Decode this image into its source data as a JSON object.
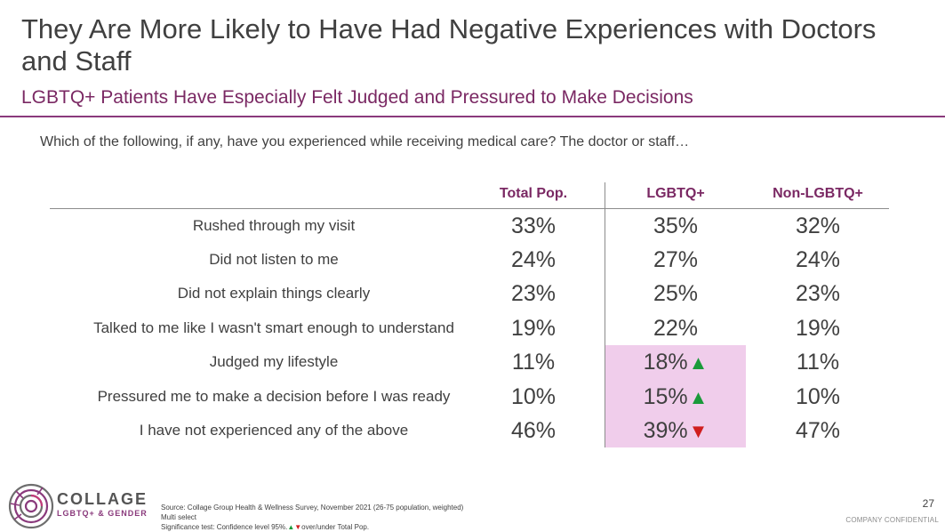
{
  "header": {
    "title": "They Are More Likely to Have Had Negative Experiences with Doctors and Staff",
    "subtitle": "LGBTQ+ Patients Have Especially Felt Judged and Pressured to Make Decisions"
  },
  "question": "Which of the following, if any, have you experienced while receiving medical care? The doctor or staff…",
  "table": {
    "columns": [
      "Total Pop.",
      "LGBTQ+",
      "Non-LGBTQ+"
    ],
    "rows": [
      {
        "label": "Rushed through my visit",
        "total": "33%",
        "lgbtq": "35%",
        "non": "32%",
        "sig": ""
      },
      {
        "label": "Did not listen to me",
        "total": "24%",
        "lgbtq": "27%",
        "non": "24%",
        "sig": ""
      },
      {
        "label": "Did not explain things clearly",
        "total": "23%",
        "lgbtq": "25%",
        "non": "23%",
        "sig": ""
      },
      {
        "label": "Talked to me like I wasn't smart enough to understand",
        "total": "19%",
        "lgbtq": "22%",
        "non": "19%",
        "sig": ""
      },
      {
        "label": "Judged my lifestyle",
        "total": "11%",
        "lgbtq": "18%",
        "non": "11%",
        "sig": "▲"
      },
      {
        "label": "Pressured me to make a decision before I was ready",
        "total": "10%",
        "lgbtq": "15%",
        "non": "10%",
        "sig": "▲"
      },
      {
        "label": "I have not experienced any of the above",
        "total": "46%",
        "lgbtq": "39%",
        "non": "47%",
        "sig": "▼"
      }
    ]
  },
  "logo": {
    "name": "COLLAGE",
    "sub": "LGBTQ+ & GENDER",
    "icon": "collage-swirl-logo"
  },
  "footer": {
    "source": "Source: Collage Group Health & Wellness Survey, November 2021 (26-75 population, weighted)",
    "multi": "Multi select",
    "sig_prefix": "Significance test: Confidence level 95%.",
    "sig_up": "▲",
    "sig_down": "▼",
    "sig_suffix": "over/under Total Pop.",
    "page_number": "27",
    "confidential": "COMPANY CONFIDENTIAL"
  },
  "colors": {
    "accent": "#7a2863",
    "highlight": "#f0cdeb",
    "up": "#1a9a3a",
    "down": "#d01e1e"
  }
}
